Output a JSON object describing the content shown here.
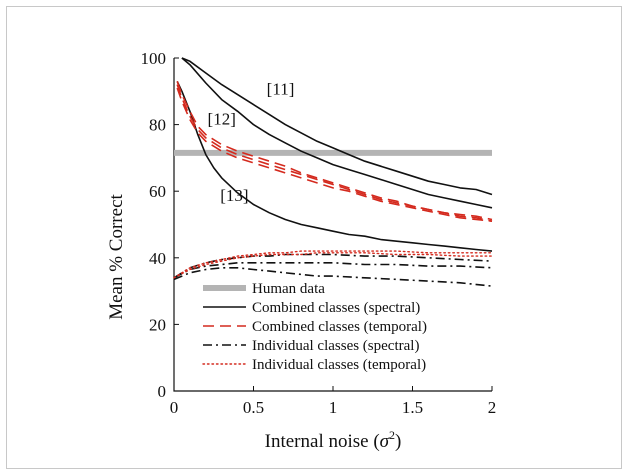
{
  "chart_data": {
    "type": "line",
    "xlabel": "Internal noise (",
    "xlabel_sym": "σ",
    "xlabel_sup": "2",
    "xlabel_end": ")",
    "ylabel": "Mean % Correct",
    "xlim": [
      0,
      2
    ],
    "ylim": [
      0,
      100
    ],
    "xticks": [
      0,
      0.5,
      1,
      1.5,
      2
    ],
    "xtick_labels": [
      "0",
      "0.5",
      "1",
      "1.5",
      "2"
    ],
    "yticks": [
      0,
      20,
      40,
      60,
      80,
      100
    ],
    "ytick_labels": [
      "0",
      "20",
      "40",
      "60",
      "80",
      "100"
    ],
    "grid": false,
    "legend_position": "bottom-left",
    "reference_lines": [
      {
        "name": "Human data",
        "y": 71.5,
        "color": "#b4b4b4",
        "style": "thick"
      }
    ],
    "series": [
      {
        "name": "Combined classes (spectral)",
        "id": "s11",
        "group": "combined-spectral",
        "style": "solid",
        "color": "#111111",
        "x": [
          0.05,
          0.1,
          0.2,
          0.3,
          0.4,
          0.5,
          0.6,
          0.7,
          0.8,
          0.9,
          1.0,
          1.1,
          1.2,
          1.3,
          1.4,
          1.5,
          1.6,
          1.7,
          1.8,
          1.9,
          2.0
        ],
        "y": [
          100,
          99,
          95.5,
          92,
          89,
          86,
          83,
          80,
          77.5,
          75,
          73,
          71,
          69,
          67.5,
          66,
          64.5,
          63,
          62,
          61,
          60.5,
          59
        ]
      },
      {
        "name": "Combined classes (spectral)",
        "id": "s12",
        "group": "combined-spectral",
        "style": "solid",
        "color": "#111111",
        "x": [
          0.05,
          0.1,
          0.2,
          0.3,
          0.4,
          0.5,
          0.6,
          0.7,
          0.8,
          0.9,
          1.0,
          1.1,
          1.2,
          1.3,
          1.4,
          1.5,
          1.6,
          1.7,
          1.8,
          1.9,
          2.0
        ],
        "y": [
          100,
          98,
          92.5,
          87.5,
          84,
          80,
          77,
          74.5,
          72,
          70,
          68,
          66.5,
          65,
          63.5,
          62,
          60.5,
          59,
          58,
          57,
          56,
          55
        ]
      },
      {
        "name": "Combined classes (spectral)",
        "id": "s13",
        "group": "combined-spectral",
        "style": "solid",
        "color": "#111111",
        "x": [
          0.02,
          0.05,
          0.1,
          0.15,
          0.2,
          0.25,
          0.3,
          0.4,
          0.5,
          0.6,
          0.7,
          0.8,
          0.9,
          1.0,
          1.1,
          1.2,
          1.3,
          1.4,
          1.5,
          1.6,
          1.7,
          1.8,
          1.9,
          2.0
        ],
        "y": [
          93,
          90,
          84,
          77,
          71,
          67,
          64,
          59.5,
          56,
          53.5,
          51.5,
          50,
          49,
          48,
          47,
          46.5,
          45.5,
          45,
          44.5,
          44,
          43.5,
          43,
          42.5,
          42
        ]
      },
      {
        "name": "Combined classes (temporal)",
        "id": "t1",
        "group": "combined-temporal",
        "style": "dashed",
        "color": "#d42a1e",
        "x": [
          0.02,
          0.05,
          0.1,
          0.15,
          0.2,
          0.3,
          0.4,
          0.5,
          0.6,
          0.7,
          0.8,
          0.9,
          1.0,
          1.1,
          1.2,
          1.3,
          1.4,
          1.5,
          1.6,
          1.7,
          1.8,
          1.9,
          2.0
        ],
        "y": [
          93,
          89,
          84,
          79.5,
          77,
          74,
          72,
          70.5,
          69,
          67.5,
          65.5,
          64,
          62.5,
          61,
          59.5,
          58,
          57,
          55.5,
          54.5,
          53.5,
          53,
          52.5,
          51.5
        ]
      },
      {
        "name": "Combined classes (temporal)",
        "id": "t2",
        "group": "combined-temporal",
        "style": "dashed",
        "color": "#d42a1e",
        "x": [
          0.02,
          0.05,
          0.1,
          0.15,
          0.2,
          0.3,
          0.4,
          0.5,
          0.6,
          0.7,
          0.8,
          0.9,
          1.0,
          1.1,
          1.2,
          1.3,
          1.4,
          1.5,
          1.6,
          1.7,
          1.8,
          1.9,
          2.0
        ],
        "y": [
          92,
          88,
          82.5,
          78.5,
          76,
          73,
          71,
          69.5,
          68,
          66.5,
          65,
          63.5,
          62,
          60.5,
          59,
          57.5,
          56.5,
          55.5,
          54.5,
          53.5,
          52.5,
          52,
          51
        ]
      },
      {
        "name": "Combined classes (temporal)",
        "id": "t3",
        "group": "combined-temporal",
        "style": "dashed",
        "color": "#d42a1e",
        "x": [
          0.02,
          0.05,
          0.1,
          0.15,
          0.2,
          0.3,
          0.4,
          0.5,
          0.6,
          0.7,
          0.8,
          0.9,
          1.0,
          1.1,
          1.2,
          1.3,
          1.4,
          1.5,
          1.6,
          1.7,
          1.8,
          1.9,
          2.0
        ],
        "y": [
          91,
          87,
          81.5,
          77.5,
          75,
          72,
          70,
          68.5,
          67,
          65.5,
          64,
          62.5,
          61,
          60,
          58.5,
          57,
          56,
          55,
          54,
          53,
          52,
          51.5,
          51
        ]
      },
      {
        "name": "Individual classes (spectral)",
        "id": "i1",
        "group": "individual-spectral",
        "style": "dashdot",
        "color": "#111111",
        "x": [
          0,
          0.1,
          0.2,
          0.3,
          0.4,
          0.5,
          0.6,
          0.7,
          0.8,
          0.9,
          1.0,
          1.2,
          1.4,
          1.6,
          1.8,
          2.0
        ],
        "y": [
          34,
          37,
          38.5,
          39.5,
          40,
          40.5,
          40.5,
          41,
          41,
          41,
          41,
          40.5,
          40.5,
          40,
          39.5,
          39
        ]
      },
      {
        "name": "Individual classes (spectral)",
        "id": "i2",
        "group": "individual-spectral",
        "style": "dashdot",
        "color": "#111111",
        "x": [
          0,
          0.1,
          0.2,
          0.3,
          0.4,
          0.5,
          0.6,
          0.7,
          0.8,
          0.9,
          1.0,
          1.2,
          1.4,
          1.6,
          1.8,
          2.0
        ],
        "y": [
          34,
          36.5,
          37.5,
          38,
          38.5,
          38.5,
          38.5,
          38.5,
          38.5,
          38.5,
          38.5,
          38,
          38,
          37.5,
          37.5,
          37
        ]
      },
      {
        "name": "Individual classes (spectral)",
        "id": "i3",
        "group": "individual-spectral",
        "style": "dashdot",
        "color": "#111111",
        "x": [
          0,
          0.1,
          0.2,
          0.3,
          0.4,
          0.5,
          0.6,
          0.7,
          0.8,
          0.9,
          1.0,
          1.2,
          1.4,
          1.6,
          1.8,
          2.0
        ],
        "y": [
          33.5,
          35.5,
          36.5,
          37,
          37,
          36.5,
          36,
          35.5,
          35,
          34.5,
          34.5,
          34,
          33.5,
          33,
          32.5,
          31.5
        ]
      },
      {
        "name": "Individual classes (temporal)",
        "id": "r1",
        "group": "individual-temporal",
        "style": "dotted",
        "color": "#d42a1e",
        "x": [
          0,
          0.1,
          0.2,
          0.3,
          0.4,
          0.5,
          0.6,
          0.7,
          0.8,
          0.9,
          1.0,
          1.2,
          1.4,
          1.6,
          1.8,
          2.0
        ],
        "y": [
          34,
          37,
          38.5,
          39.5,
          40.5,
          41,
          41.5,
          41.5,
          42,
          42,
          42,
          42,
          42,
          41.5,
          41.5,
          41.5
        ]
      },
      {
        "name": "Individual classes (temporal)",
        "id": "r2",
        "group": "individual-temporal",
        "style": "dotted",
        "color": "#d42a1e",
        "x": [
          0,
          0.1,
          0.2,
          0.3,
          0.4,
          0.5,
          0.6,
          0.7,
          0.8,
          0.9,
          1.0,
          1.2,
          1.4,
          1.6,
          1.8,
          2.0
        ],
        "y": [
          34,
          36.5,
          38,
          39,
          40,
          40.5,
          41,
          41,
          41,
          41.5,
          41.5,
          41.5,
          41,
          41,
          40.5,
          40.5
        ]
      }
    ],
    "annotations": [
      {
        "text": "[11]",
        "x": 0.67,
        "y": 89
      },
      {
        "text": "[12]",
        "x": 0.3,
        "y": 80
      },
      {
        "text": "[13]",
        "x": 0.38,
        "y": 57
      }
    ],
    "legend": [
      {
        "label": "Human data",
        "style": "thick",
        "color": "#b4b4b4"
      },
      {
        "label": "Combined classes (spectral)",
        "style": "solid",
        "color": "#111111"
      },
      {
        "label": "Combined classes (temporal)",
        "style": "dashed",
        "color": "#d42a1e"
      },
      {
        "label": "Individual classes (spectral)",
        "style": "dashdot",
        "color": "#111111"
      },
      {
        "label": "Individual classes (temporal)",
        "style": "dotted",
        "color": "#d42a1e"
      }
    ]
  }
}
